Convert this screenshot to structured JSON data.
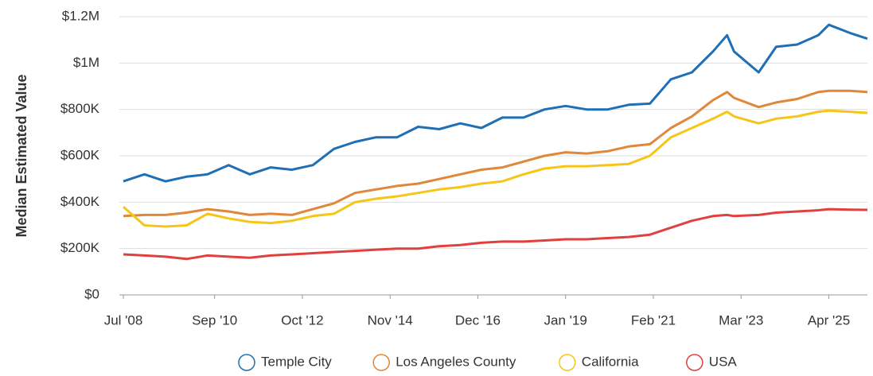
{
  "chart_data": {
    "type": "line",
    "y_label": "Median Estimated Value",
    "x": [
      "2008-07",
      "2009-01",
      "2009-07",
      "2010-01",
      "2010-07",
      "2011-01",
      "2011-07",
      "2012-01",
      "2012-07",
      "2013-01",
      "2013-07",
      "2014-01",
      "2014-07",
      "2015-01",
      "2015-07",
      "2016-01",
      "2016-07",
      "2017-01",
      "2017-07",
      "2018-01",
      "2018-07",
      "2019-01",
      "2019-07",
      "2020-01",
      "2020-07",
      "2021-01",
      "2021-07",
      "2022-01",
      "2022-07",
      "2022-11",
      "2023-01",
      "2023-08",
      "2024-01",
      "2024-07",
      "2025-01",
      "2025-04",
      "2025-10",
      "2026-03"
    ],
    "series": [
      {
        "name": "Temple City",
        "color": "#1f6fb5",
        "values": [
          490000,
          520000,
          490000,
          510000,
          520000,
          560000,
          520000,
          550000,
          540000,
          560000,
          630000,
          660000,
          680000,
          680000,
          725000,
          715000,
          740000,
          720000,
          765000,
          765000,
          800000,
          815000,
          800000,
          800000,
          820000,
          825000,
          930000,
          960000,
          1050000,
          1120000,
          1050000,
          960000,
          1070000,
          1080000,
          1120000,
          1165000,
          1130000,
          1105000
        ]
      },
      {
        "name": "Los Angeles County",
        "color": "#e0873a",
        "values": [
          340000,
          345000,
          345000,
          355000,
          370000,
          360000,
          345000,
          350000,
          345000,
          370000,
          395000,
          440000,
          455000,
          470000,
          480000,
          500000,
          520000,
          540000,
          550000,
          575000,
          600000,
          615000,
          610000,
          620000,
          640000,
          650000,
          720000,
          770000,
          840000,
          875000,
          850000,
          810000,
          830000,
          845000,
          875000,
          880000,
          880000,
          875000
        ]
      },
      {
        "name": "California",
        "color": "#f5c518",
        "values": [
          380000,
          300000,
          295000,
          300000,
          350000,
          330000,
          315000,
          310000,
          320000,
          340000,
          350000,
          400000,
          415000,
          425000,
          440000,
          455000,
          465000,
          480000,
          490000,
          520000,
          545000,
          555000,
          555000,
          560000,
          565000,
          600000,
          680000,
          720000,
          760000,
          790000,
          770000,
          740000,
          760000,
          770000,
          790000,
          795000,
          790000,
          785000
        ]
      },
      {
        "name": "USA",
        "color": "#e0413f",
        "values": [
          175000,
          170000,
          165000,
          155000,
          170000,
          165000,
          160000,
          170000,
          175000,
          180000,
          185000,
          190000,
          195000,
          200000,
          200000,
          210000,
          215000,
          225000,
          230000,
          230000,
          235000,
          240000,
          240000,
          245000,
          250000,
          260000,
          290000,
          320000,
          340000,
          345000,
          340000,
          345000,
          355000,
          360000,
          365000,
          370000,
          368000,
          367000
        ]
      }
    ],
    "xlim": [
      "2008-07",
      "2026-03"
    ],
    "xticks": [
      {
        "value": "2008-07",
        "label": "Jul '08"
      },
      {
        "value": "2010-09",
        "label": "Sep '10"
      },
      {
        "value": "2012-10",
        "label": "Oct '12"
      },
      {
        "value": "2014-11",
        "label": "Nov '14"
      },
      {
        "value": "2016-12",
        "label": "Dec '16"
      },
      {
        "value": "2019-01",
        "label": "Jan '19"
      },
      {
        "value": "2021-02",
        "label": "Feb '21"
      },
      {
        "value": "2023-03",
        "label": "Mar '23"
      },
      {
        "value": "2025-04",
        "label": "Apr '25"
      }
    ],
    "ylim": [
      0,
      1200000
    ],
    "yticks": [
      {
        "value": 0,
        "label": "$0"
      },
      {
        "value": 200000,
        "label": "$200K"
      },
      {
        "value": 400000,
        "label": "$400K"
      },
      {
        "value": 600000,
        "label": "$600K"
      },
      {
        "value": 800000,
        "label": "$800K"
      },
      {
        "value": 1000000,
        "label": "$1M"
      },
      {
        "value": 1200000,
        "label": "$1.2M"
      }
    ],
    "grid": true
  }
}
